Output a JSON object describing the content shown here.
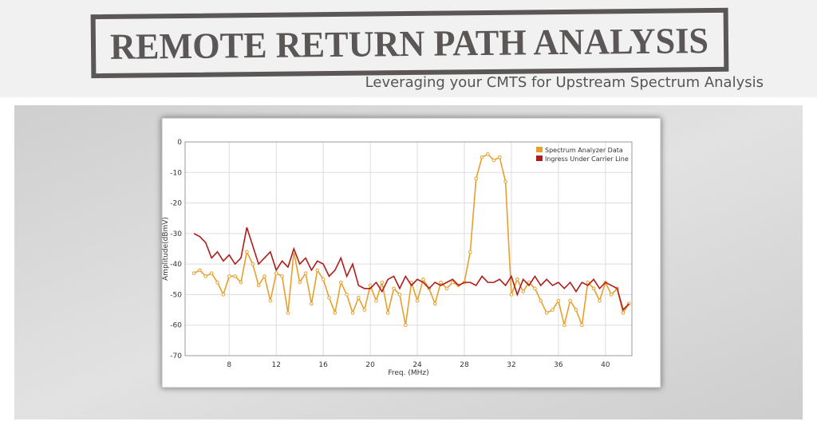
{
  "header": {
    "title": "REMOTE RETURN PATH ANALYSIS",
    "subtitle": "Leveraging your CMTS for Upstream Spectrum Analysis"
  },
  "chart_data": {
    "type": "line",
    "x_label": "Freq. (MHz)",
    "y_label": "Amplitude(dBmV)",
    "x": [
      5,
      5.5,
      6,
      6.5,
      7,
      7.5,
      8,
      8.5,
      9,
      9.5,
      10,
      10.5,
      11,
      11.5,
      12,
      12.5,
      13,
      13.5,
      14,
      14.5,
      15,
      15.5,
      16,
      16.5,
      17,
      17.5,
      18,
      18.5,
      19,
      19.5,
      20,
      20.5,
      21,
      21.5,
      22,
      22.5,
      23,
      23.5,
      24,
      24.5,
      25,
      25.5,
      26,
      26.5,
      27,
      27.5,
      28,
      28.5,
      29,
      29.5,
      30,
      30.5,
      31,
      31.5,
      32,
      32.5,
      33,
      33.5,
      34,
      34.5,
      35,
      35.5,
      36,
      36.5,
      37,
      37.5,
      38,
      38.5,
      39,
      39.5,
      40,
      40.5,
      41,
      41.5,
      42
    ],
    "series": [
      {
        "name": "Spectrum Analyzer Data",
        "color": "#e8a02a",
        "markers": true,
        "values": [
          -43,
          -42,
          -44,
          -43,
          -46,
          -50,
          -44,
          -44,
          -46,
          -36,
          -40,
          -47,
          -44,
          -52,
          -43,
          -44,
          -56,
          -36,
          -46,
          -43,
          -53,
          -42,
          -45,
          -51,
          -56,
          -46,
          -50,
          -56,
          -51,
          -55,
          -47,
          -52,
          -46,
          -56,
          -48,
          -50,
          -60,
          -46,
          -52,
          -45,
          -48,
          -53,
          -46,
          -48,
          -46,
          -47,
          -46,
          -36,
          -12,
          -5,
          -4,
          -6,
          -5,
          -13,
          -50,
          -45,
          -49,
          -46,
          -48,
          -52,
          -56,
          -55,
          -52,
          -60,
          -52,
          -55,
          -60,
          -46,
          -48,
          -52,
          -46,
          -50,
          -48,
          -56,
          -53
        ]
      },
      {
        "name": "Ingress Under Carrier Line",
        "color": "#b01c1c",
        "markers": false,
        "values": [
          -30,
          -31,
          -33,
          -38,
          -36,
          -39,
          -37,
          -40,
          -38,
          -28,
          -34,
          -40,
          -38,
          -36,
          -42,
          -39,
          -41,
          -35,
          -40,
          -38,
          -42,
          -39,
          -40,
          -44,
          -42,
          -38,
          -44,
          -40,
          -47,
          -48,
          -48,
          -46,
          -49,
          -45,
          -44,
          -48,
          -44,
          -47,
          -45,
          -46,
          -48,
          -46,
          -47,
          -46,
          -45,
          -47,
          -46,
          -46,
          -47,
          -44,
          -46,
          -46,
          -45,
          -47,
          -44,
          -50,
          -45,
          -47,
          -44,
          -47,
          -45,
          -47,
          -46,
          -48,
          -46,
          -49,
          -46,
          -47,
          -45,
          -48,
          -46,
          -47,
          -48,
          -55,
          -53
        ]
      }
    ],
    "xlim": [
      4.25,
      42.25
    ],
    "xticks": [
      8,
      12,
      16,
      20,
      24,
      28,
      32,
      36,
      40
    ],
    "ylim": [
      -70,
      0
    ],
    "yticks": [
      0,
      -10,
      -20,
      -30,
      -40,
      -50,
      -60,
      -70
    ],
    "grid": true,
    "legend": "top-right"
  }
}
